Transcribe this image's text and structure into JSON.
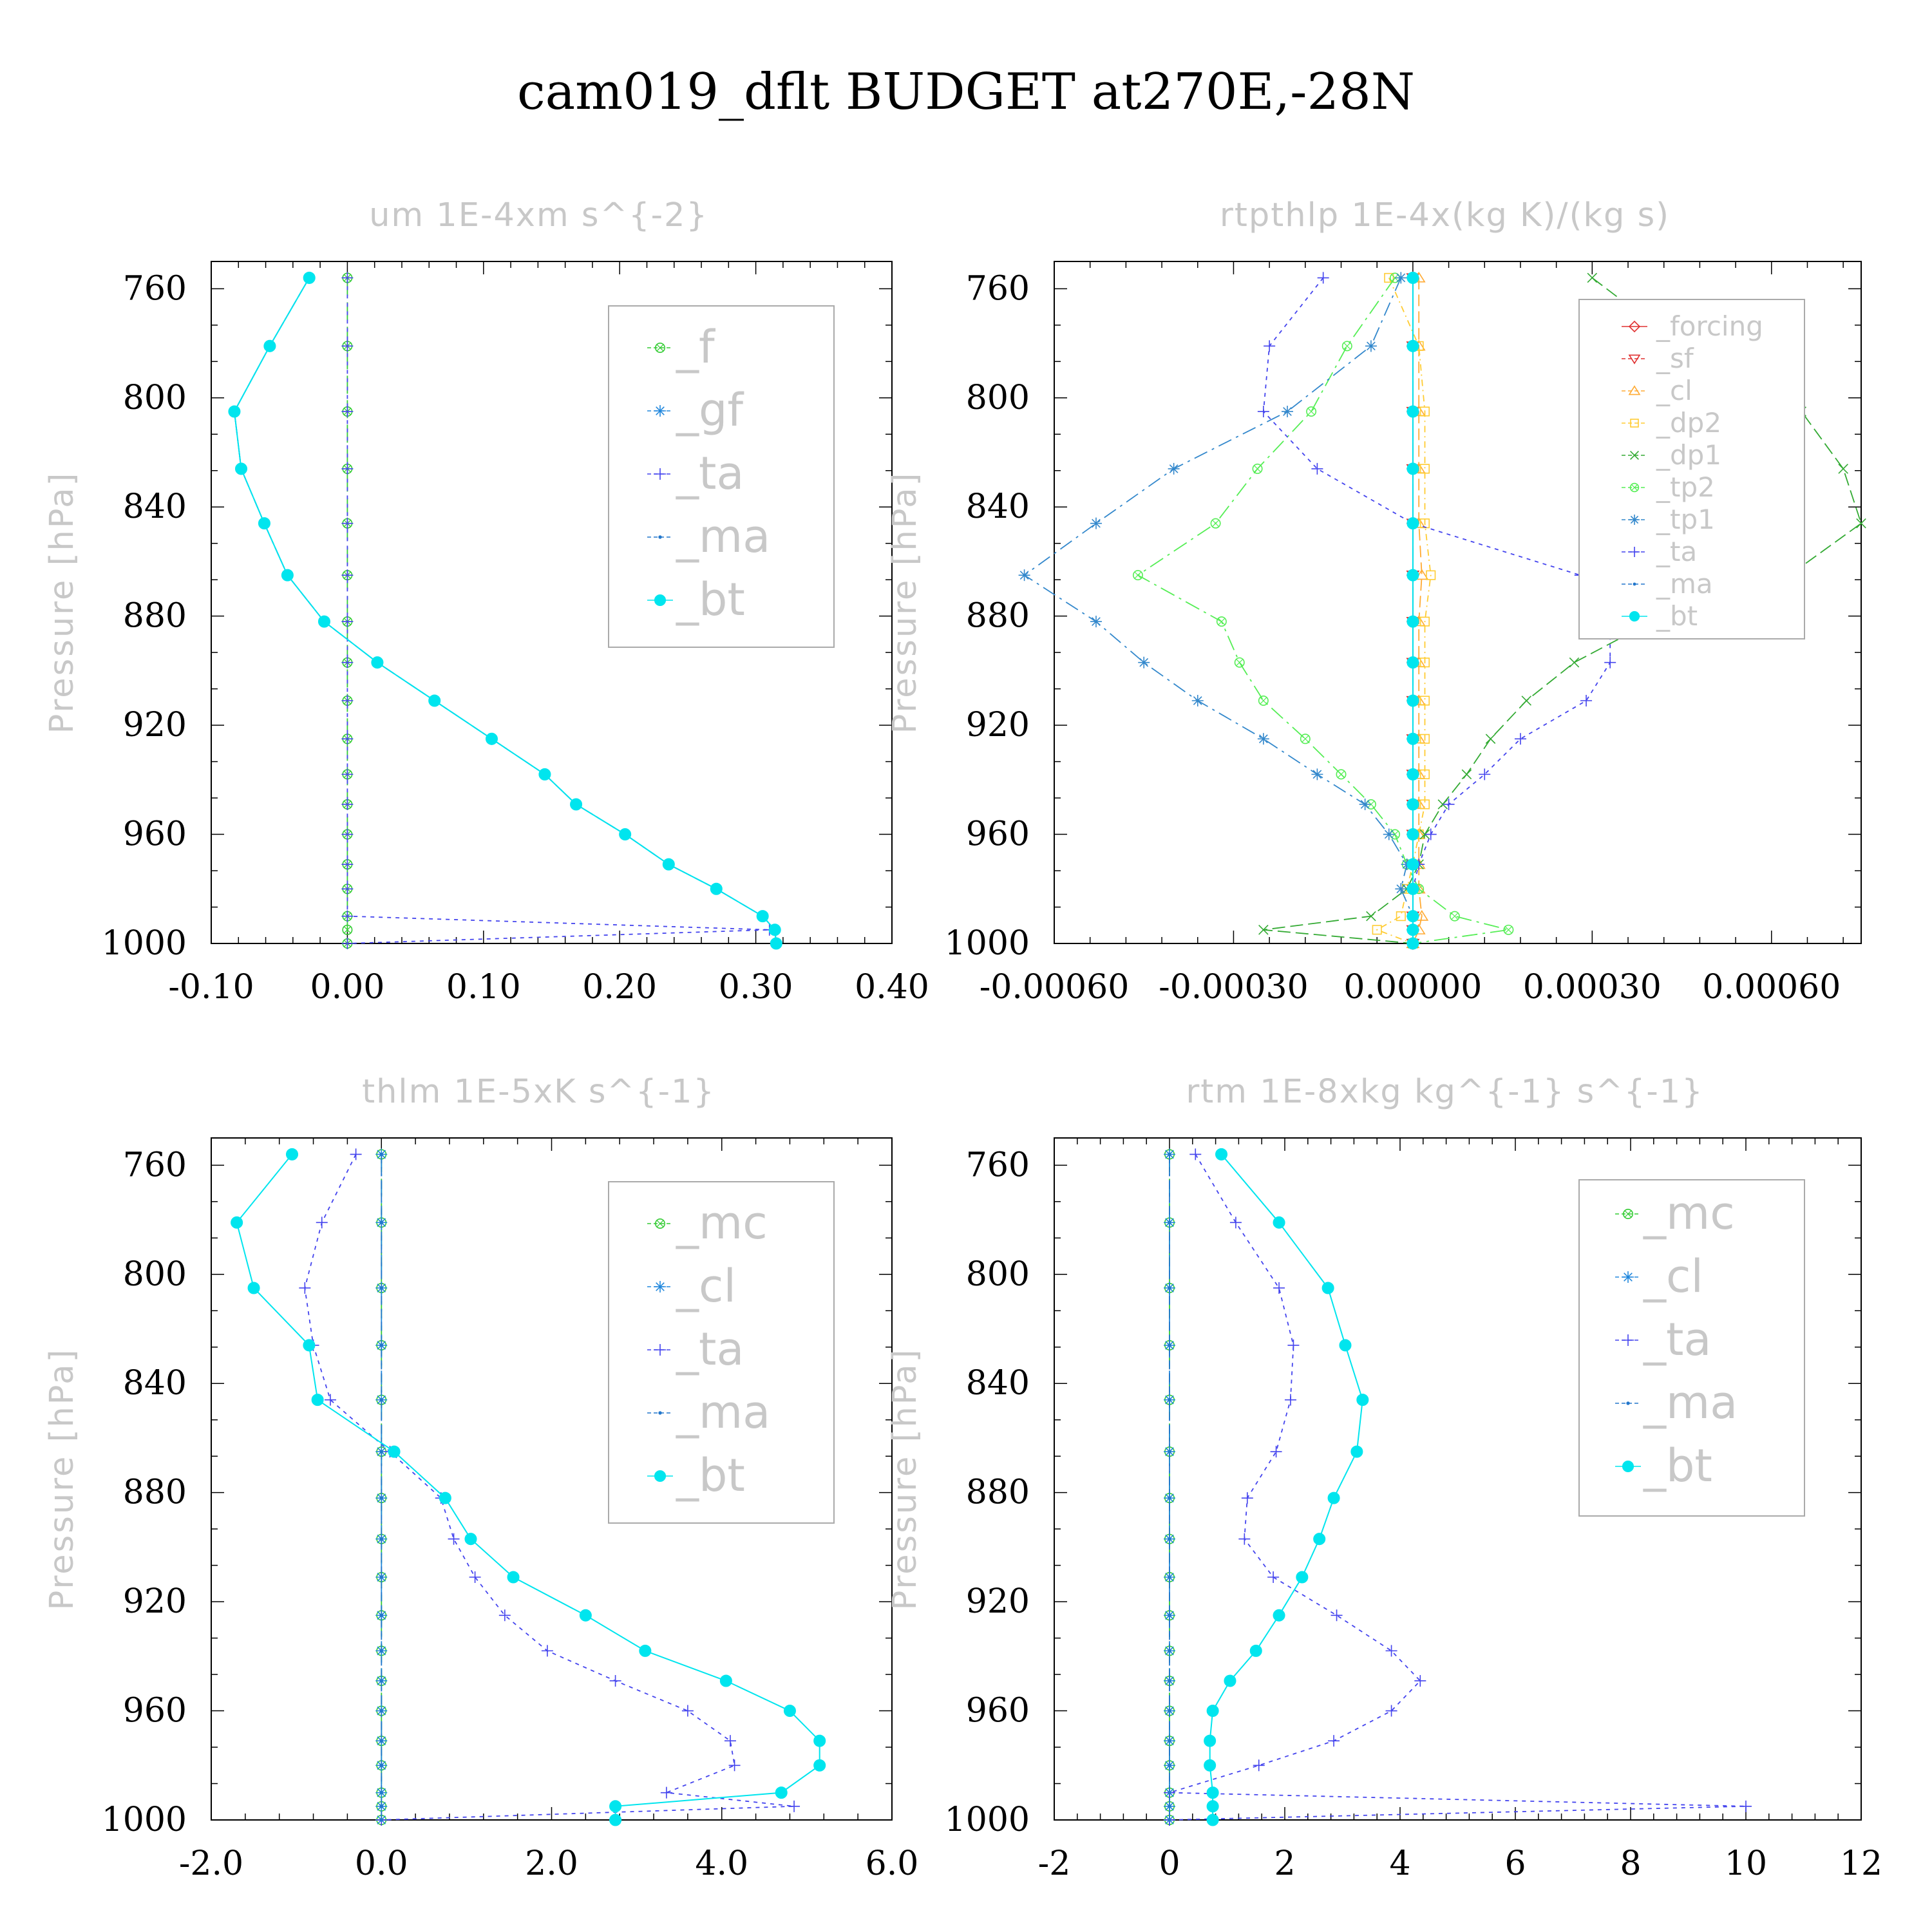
{
  "title": "cam019_dflt  BUDGET at270E,-28N",
  "colors": {
    "f": "#33cc33",
    "gf": "#2288dd",
    "ta": "#4444ee",
    "ma": "#2277cc",
    "bt": "#00e5ee",
    "mc": "#33cc33",
    "cl": "#2288dd",
    "forcing": "#e03030",
    "sf": "#e03030",
    "cl_orange": "#ffaa33",
    "dp2": "#ffcc33",
    "dp1": "#33aa33",
    "tp2": "#55ee55",
    "tp1": "#3388cc",
    "frame": "#000000",
    "faint_text": "#c8c8c8"
  },
  "chart_data": [
    {
      "type": "line",
      "id": "um",
      "title": "um  1E-4xm s^{-2}",
      "ylabel": "Pressure [hPa]",
      "xlim": [
        -0.1,
        0.4
      ],
      "ylim": [
        750,
        1000
      ],
      "xticks": [
        -0.1,
        0.0,
        0.1,
        0.2,
        0.3,
        0.4
      ],
      "xtick_labels": [
        "-0.10",
        "0.00",
        "0.10",
        "0.20",
        "0.30",
        "0.40"
      ],
      "yticks": [
        760,
        800,
        840,
        880,
        920,
        960,
        1000
      ],
      "ytick_labels": [
        "760",
        "800",
        "840",
        "880",
        "920",
        "960",
        "1000"
      ],
      "pressure": [
        756,
        781,
        805,
        826,
        846,
        865,
        882,
        897,
        911,
        925,
        938,
        949,
        960,
        971,
        980,
        990,
        995,
        1000
      ],
      "series": [
        {
          "name": "_f",
          "key": "f",
          "values": [
            0,
            0,
            0,
            0,
            0,
            0,
            0,
            0,
            0,
            0,
            0,
            0,
            0,
            0,
            0,
            0,
            0,
            0
          ]
        },
        {
          "name": "_gf",
          "key": "gf",
          "values": [
            -0.028,
            -0.057,
            -0.083,
            -0.078,
            -0.061,
            -0.044,
            -0.017,
            0.022,
            0.064,
            0.106,
            0.145,
            0.168,
            0.204,
            0.236,
            0.271,
            0.305,
            0.314,
            0.315
          ]
        },
        {
          "name": "_ta",
          "key": "ta",
          "values": [
            0,
            0,
            0,
            0,
            0,
            0,
            0,
            0,
            0,
            0,
            0,
            0,
            0,
            0,
            0,
            0,
            0.31,
            0.0
          ]
        },
        {
          "name": "_ma",
          "key": "ma",
          "values": [
            -0.028,
            -0.057,
            -0.083,
            -0.078,
            -0.061,
            -0.044,
            -0.017,
            0.022,
            0.064,
            0.106,
            0.145,
            0.168,
            0.204,
            0.236,
            0.271,
            0.305,
            0.314,
            0.315
          ]
        },
        {
          "name": "_bt",
          "key": "bt",
          "values": [
            -0.028,
            -0.057,
            -0.083,
            -0.078,
            -0.061,
            -0.044,
            -0.017,
            0.022,
            0.064,
            0.106,
            0.145,
            0.168,
            0.204,
            0.236,
            0.271,
            0.305,
            0.314,
            0.315
          ]
        }
      ]
    },
    {
      "type": "line",
      "id": "rtpthlp",
      "title": "rtpthlp  1E-4x(kg K)/(kg s)",
      "ylabel": "Pressure [hPa]",
      "xlim": [
        -0.0006,
        0.00075
      ],
      "ylim": [
        750,
        1000
      ],
      "xticks": [
        -0.0006,
        -0.0003,
        0.0,
        0.0003,
        0.0006
      ],
      "xtick_labels": [
        "-0.00060",
        "-0.00030",
        "0.00000",
        "0.00030",
        "0.00060"
      ],
      "yticks": [
        760,
        800,
        840,
        880,
        920,
        960,
        1000
      ],
      "ytick_labels": [
        "760",
        "800",
        "840",
        "880",
        "920",
        "960",
        "1000"
      ],
      "pressure": [
        756,
        781,
        805,
        826,
        846,
        865,
        882,
        897,
        911,
        925,
        938,
        949,
        960,
        971,
        980,
        990,
        995,
        1000
      ],
      "series": [
        {
          "name": "_forcing",
          "key": "forcing",
          "values": [
            0,
            0,
            0,
            0,
            0,
            0,
            0,
            0,
            0,
            0,
            0,
            0,
            0,
            0,
            0,
            0,
            0,
            0
          ]
        },
        {
          "name": "_sf",
          "key": "sf",
          "values": [
            0,
            0,
            0,
            0,
            0,
            0,
            0,
            0,
            0,
            0,
            0,
            0,
            0,
            0,
            0,
            0,
            0,
            0
          ]
        },
        {
          "name": "_cl",
          "key": "cl_orange",
          "values": [
            1e-05,
            1e-05,
            1e-05,
            1e-05,
            1e-05,
            1.5e-05,
            1e-05,
            1e-05,
            1e-05,
            1e-05,
            1e-05,
            1e-05,
            1e-05,
            1e-05,
            1e-05,
            1.5e-05,
            1e-05,
            0.0
          ]
        },
        {
          "name": "_dp2",
          "key": "dp2",
          "values": [
            -4e-05,
            1e-05,
            2e-05,
            2e-05,
            2e-05,
            3e-05,
            2e-05,
            2e-05,
            2e-05,
            2e-05,
            2e-05,
            2e-05,
            1e-05,
            0.0,
            -1e-05,
            -2e-05,
            -6e-05,
            0.0
          ]
        },
        {
          "name": "_dp1",
          "key": "dp1",
          "values": [
            0.0003,
            0.00045,
            0.00065,
            0.00072,
            0.00075,
            0.00063,
            0.0004,
            0.00027,
            0.00019,
            0.00013,
            9e-05,
            5e-05,
            2e-05,
            1e-05,
            -1e-05,
            -7e-05,
            -0.00025,
            0.0
          ]
        },
        {
          "name": "_tp2",
          "key": "tp2",
          "values": [
            -3e-05,
            -0.00011,
            -0.00017,
            -0.00026,
            -0.00033,
            -0.00046,
            -0.00032,
            -0.00029,
            -0.00025,
            -0.00018,
            -0.00012,
            -7e-05,
            -3e-05,
            -1e-05,
            1e-05,
            7e-05,
            0.00016,
            0.0
          ]
        },
        {
          "name": "_tp1",
          "key": "tp1",
          "values": [
            -2e-05,
            -7e-05,
            -0.00021,
            -0.0004,
            -0.00053,
            -0.00065,
            -0.00053,
            -0.00045,
            -0.00036,
            -0.00025,
            -0.00016,
            -8e-05,
            -4e-05,
            -1e-05,
            -2e-05,
            0.0,
            0.0,
            0.0
          ]
        },
        {
          "name": "_ta",
          "key": "ta",
          "values": [
            -0.00015,
            -0.00024,
            -0.00025,
            -0.00016,
            0.0,
            0.00028,
            0.00033,
            0.00033,
            0.00029,
            0.00018,
            0.00012,
            6e-05,
            3e-05,
            1e-05,
            0.0,
            0.0,
            0.0,
            0.0
          ]
        },
        {
          "name": "_ma",
          "key": "ma",
          "values": [
            0,
            0,
            0,
            0,
            0,
            0,
            0,
            0,
            0,
            0,
            0,
            0,
            0,
            0,
            0,
            0,
            0,
            0
          ]
        },
        {
          "name": "_bt",
          "key": "bt",
          "values": [
            0,
            0,
            0,
            0,
            0,
            0,
            0,
            0,
            0,
            0,
            0,
            0,
            0,
            0,
            0,
            0,
            0,
            0
          ]
        }
      ]
    },
    {
      "type": "line",
      "id": "thlm",
      "title": "thlm  1E-5xK s^{-1}",
      "ylabel": "Pressure [hPa]",
      "xlim": [
        -2.0,
        6.0
      ],
      "ylim": [
        750,
        1000
      ],
      "xticks": [
        -2.0,
        0.0,
        2.0,
        4.0,
        6.0
      ],
      "xtick_labels": [
        "-2.0",
        "0.0",
        "2.0",
        "4.0",
        "6.0"
      ],
      "yticks": [
        760,
        800,
        840,
        880,
        920,
        960,
        1000
      ],
      "ytick_labels": [
        "760",
        "800",
        "840",
        "880",
        "920",
        "960",
        "1000"
      ],
      "pressure": [
        756,
        781,
        805,
        826,
        846,
        865,
        882,
        897,
        911,
        925,
        938,
        949,
        960,
        971,
        980,
        990,
        995,
        1000
      ],
      "series": [
        {
          "name": "_mc",
          "key": "mc",
          "values": [
            0,
            0,
            0,
            0,
            0,
            0,
            0,
            0,
            0,
            0,
            0,
            0,
            0,
            0,
            0,
            0,
            0,
            0
          ]
        },
        {
          "name": "_cl",
          "key": "cl",
          "values": [
            0,
            0,
            0,
            0,
            0,
            0,
            0,
            0,
            0,
            0,
            0,
            0,
            0,
            0,
            0,
            0,
            0,
            0
          ]
        },
        {
          "name": "_ta",
          "key": "ta",
          "values": [
            -0.3,
            -0.7,
            -0.9,
            -0.8,
            -0.6,
            0.1,
            0.7,
            0.85,
            1.1,
            1.45,
            1.95,
            2.75,
            3.6,
            4.1,
            4.15,
            3.35,
            4.85,
            0.0
          ]
        },
        {
          "name": "_ma",
          "key": "ma",
          "values": [
            0,
            0,
            0,
            0,
            0,
            0,
            0,
            0,
            0,
            0,
            0,
            0,
            0,
            0,
            0,
            0,
            0,
            0
          ]
        },
        {
          "name": "_bt",
          "key": "bt",
          "values": [
            -1.05,
            -1.7,
            -1.5,
            -0.85,
            -0.75,
            0.15,
            0.75,
            1.05,
            1.55,
            2.4,
            3.1,
            4.05,
            4.8,
            5.15,
            5.15,
            4.7,
            2.75,
            2.75
          ]
        }
      ]
    },
    {
      "type": "line",
      "id": "rtm",
      "title": "rtm  1E-8xkg kg^{-1} s^{-1}",
      "ylabel": "Pressure [hPa]",
      "xlim": [
        -2,
        12
      ],
      "ylim": [
        750,
        1000
      ],
      "xticks": [
        -2,
        0,
        2,
        4,
        6,
        8,
        10,
        12
      ],
      "xtick_labels": [
        "-2",
        "0",
        "2",
        "4",
        "6",
        "8",
        "10",
        "12"
      ],
      "yticks": [
        760,
        800,
        840,
        880,
        920,
        960,
        1000
      ],
      "ytick_labels": [
        "760",
        "800",
        "840",
        "880",
        "920",
        "960",
        "1000"
      ],
      "pressure": [
        756,
        781,
        805,
        826,
        846,
        865,
        882,
        897,
        911,
        925,
        938,
        949,
        960,
        971,
        980,
        990,
        995,
        1000
      ],
      "series": [
        {
          "name": "_mc",
          "key": "mc",
          "values": [
            0,
            0,
            0,
            0,
            0,
            0,
            0,
            0,
            0,
            0,
            0,
            0,
            0,
            0,
            0,
            0,
            0,
            0
          ]
        },
        {
          "name": "_cl",
          "key": "cl",
          "values": [
            0,
            0,
            0,
            0,
            0,
            0,
            0,
            0,
            0,
            0,
            0,
            0,
            0,
            0,
            0,
            0,
            0,
            0
          ]
        },
        {
          "name": "_ta",
          "key": "ta",
          "values": [
            0.45,
            1.15,
            1.9,
            2.15,
            2.1,
            1.85,
            1.35,
            1.3,
            1.8,
            2.9,
            3.85,
            4.35,
            3.85,
            2.85,
            1.55,
            0.0,
            10.0,
            0.0
          ]
        },
        {
          "name": "_ma",
          "key": "ma",
          "values": [
            0,
            0,
            0,
            0,
            0,
            0,
            0,
            0,
            0,
            0,
            0,
            0,
            0,
            0,
            0,
            0,
            0,
            0
          ]
        },
        {
          "name": "_bt",
          "key": "bt",
          "values": [
            0.9,
            1.9,
            2.75,
            3.05,
            3.35,
            3.25,
            2.85,
            2.6,
            2.3,
            1.9,
            1.5,
            1.05,
            0.75,
            0.7,
            0.7,
            0.75,
            0.75,
            0.75
          ]
        }
      ]
    }
  ]
}
